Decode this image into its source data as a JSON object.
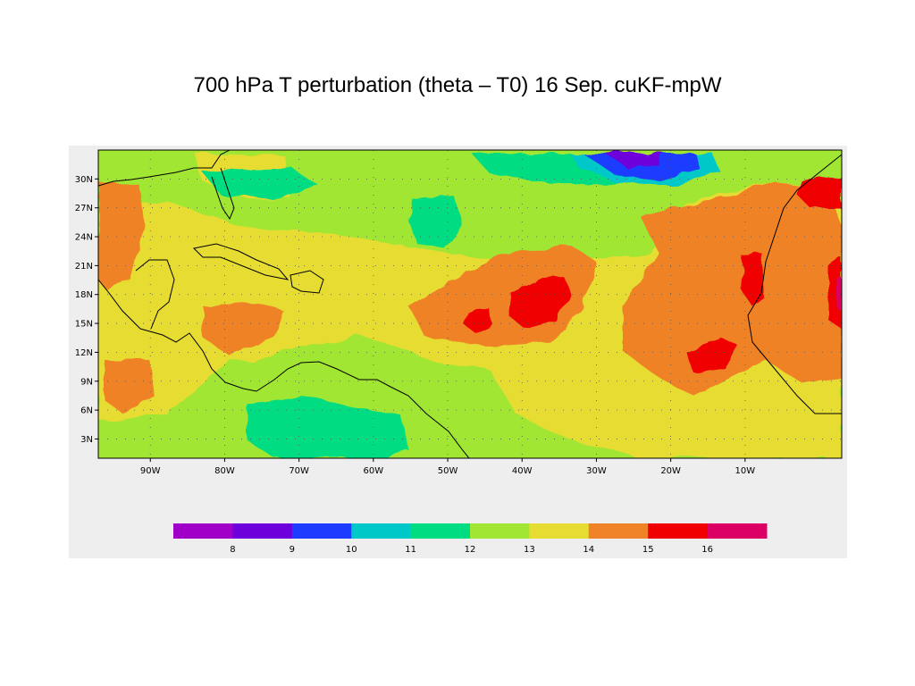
{
  "title": "700 hPa T perturbation (theta – T0) 16 Sep. cuKF-mpW",
  "map": {
    "lat_labels": [
      "30N",
      "27N",
      "24N",
      "21N",
      "18N",
      "15N",
      "12N",
      "9N",
      "6N",
      "3N"
    ],
    "lon_labels": [
      "90W",
      "80W",
      "70W",
      "60W",
      "50W",
      "40W",
      "30W",
      "20W",
      "10W"
    ],
    "extent": {
      "lon_min": -97,
      "lon_max": 3,
      "lat_min": 1,
      "lat_max": 33
    }
  },
  "colorbar": {
    "colors": [
      "#a000c8",
      "#6e00dc",
      "#1e3cff",
      "#00c8c8",
      "#00dc82",
      "#a0e632",
      "#e6dc32",
      "#f08228",
      "#f00000",
      "#dc0064"
    ],
    "labels": [
      "8",
      "9",
      "10",
      "11",
      "12",
      "13",
      "14",
      "15",
      "16"
    ]
  }
}
